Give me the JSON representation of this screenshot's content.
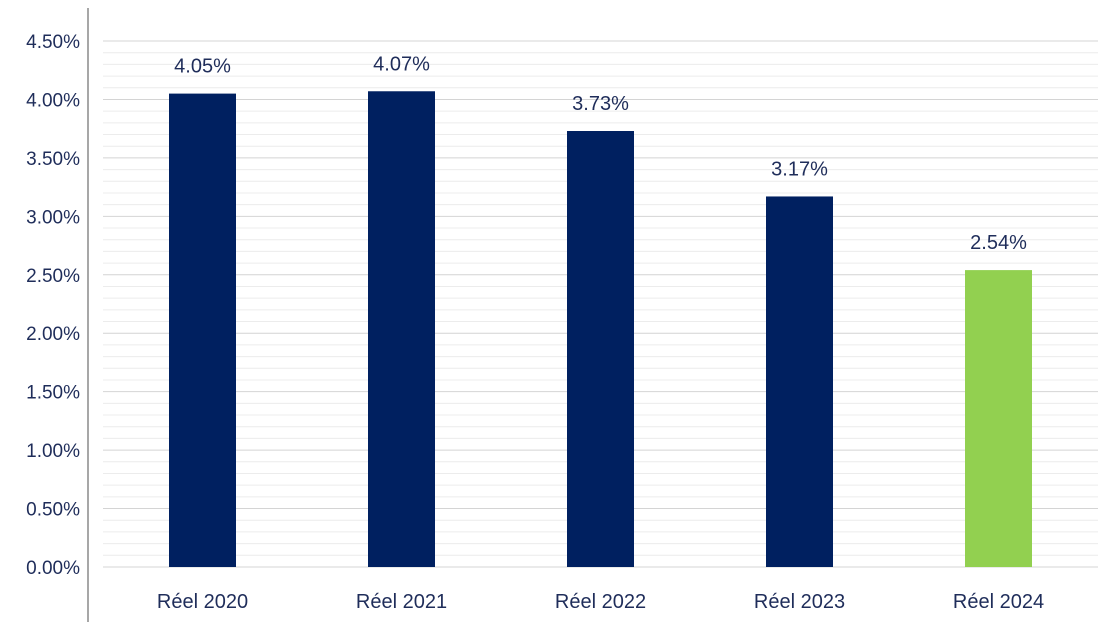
{
  "chart_data": {
    "type": "bar",
    "categories": [
      "Réel 2020",
      "Réel 2021",
      "Réel 2022",
      "Réel 2023",
      "Réel 2024"
    ],
    "values": [
      4.05,
      4.07,
      3.73,
      3.17,
      2.54
    ],
    "data_labels": [
      "4.05%",
      "4.07%",
      "3.73%",
      "3.17%",
      "2.54%"
    ],
    "bar_colors": [
      "#002060",
      "#002060",
      "#002060",
      "#002060",
      "#92d050"
    ],
    "ylim": [
      0,
      4.5
    ],
    "y_ticks": [
      0,
      0.5,
      1.0,
      1.5,
      2.0,
      2.5,
      3.0,
      3.5,
      4.0,
      4.5
    ],
    "y_tick_labels": [
      "0.00%",
      "0.50%",
      "1.00%",
      "1.50%",
      "2.00%",
      "2.50%",
      "3.00%",
      "3.50%",
      "4.00%",
      "4.50%"
    ],
    "minor_step": 0.1,
    "grid": true,
    "title": "",
    "xlabel": "",
    "ylabel": ""
  }
}
